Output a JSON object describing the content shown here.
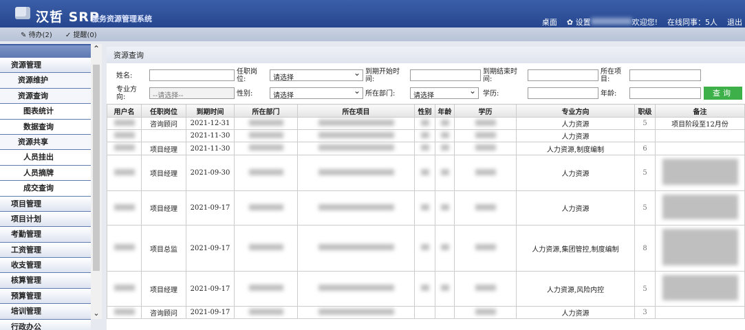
{
  "header": {
    "logo": "汉哲 SRP",
    "subtitle": "服务资源管理系统",
    "desktop": "桌面",
    "settings": "设置",
    "welcome": "欢迎您!",
    "online": "在线同事：5人",
    "logout": "退出"
  },
  "toolbar": {
    "todo": "待办(2)",
    "reminder": "提醒(0)"
  },
  "sidebar": {
    "items": [
      {
        "label": "资源管理",
        "level": 1
      },
      {
        "label": "资源维护",
        "level": 2
      },
      {
        "label": "资源查询",
        "level": 2
      },
      {
        "label": "图表统计",
        "level": 3
      },
      {
        "label": "数据查询",
        "level": 3
      },
      {
        "label": "资源共享",
        "level": 2
      },
      {
        "label": "人员挂出",
        "level": 3
      },
      {
        "label": "人员摘牌",
        "level": 3
      },
      {
        "label": "成交查询",
        "level": 3
      },
      {
        "label": "项目管理",
        "level": 1
      },
      {
        "label": "项目计划",
        "level": 1
      },
      {
        "label": "考勤管理",
        "level": 1
      },
      {
        "label": "工资管理",
        "level": 1
      },
      {
        "label": "收支管理",
        "level": 1
      },
      {
        "label": "核算管理",
        "level": 1
      },
      {
        "label": "预算管理",
        "level": 1
      },
      {
        "label": "培训管理",
        "level": 1
      },
      {
        "label": "行政办公",
        "level": 1
      }
    ]
  },
  "panel": {
    "title": "资源查询"
  },
  "form": {
    "name": "姓名:",
    "position": "任职岗位:",
    "expire_start": "到期开始时间:",
    "expire_end": "到期结束时间:",
    "project": "所在项目:",
    "major": "专业方向:",
    "major_placeholder": "--请选择--",
    "gender": "性别:",
    "dept": "所在部门:",
    "education": "学历:",
    "age": "年龄:",
    "select_default": "请选择",
    "search": "查询"
  },
  "table": {
    "headers": [
      "用户名",
      "任职岗位",
      "到期时间",
      "所在部门",
      "所在项目",
      "性别",
      "年龄",
      "学历",
      "专业方向",
      "职级",
      "备注"
    ],
    "rows": [
      {
        "position": "咨询顾问",
        "date": "2021-12-31",
        "major": "人力资源",
        "level": "5",
        "remark": "项目阶段至12月份"
      },
      {
        "position": "",
        "date": "2021-11-30",
        "major": "人力资源",
        "level": "",
        "remark": ""
      },
      {
        "position": "项目经理",
        "date": "2021-11-30",
        "major": "人力资源,制度编制",
        "level": "6",
        "remark": ""
      },
      {
        "position": "项目经理",
        "date": "2021-09-30",
        "major": "人力资源",
        "level": "5",
        "remark": ""
      },
      {
        "position": "项目经理",
        "date": "2021-09-17",
        "major": "人力资源",
        "level": "5",
        "remark": ""
      },
      {
        "position": "项目总监",
        "date": "2021-09-17",
        "major": "人力资源,集团管控,制度编制",
        "level": "8",
        "remark": ""
      },
      {
        "position": "项目经理",
        "date": "2021-09-17",
        "major": "人力资源,风险内控",
        "level": "5",
        "remark": ""
      },
      {
        "position": "咨询顾问",
        "date": "2021-09-17",
        "major": "人力资源",
        "level": "3",
        "remark": ""
      }
    ]
  }
}
